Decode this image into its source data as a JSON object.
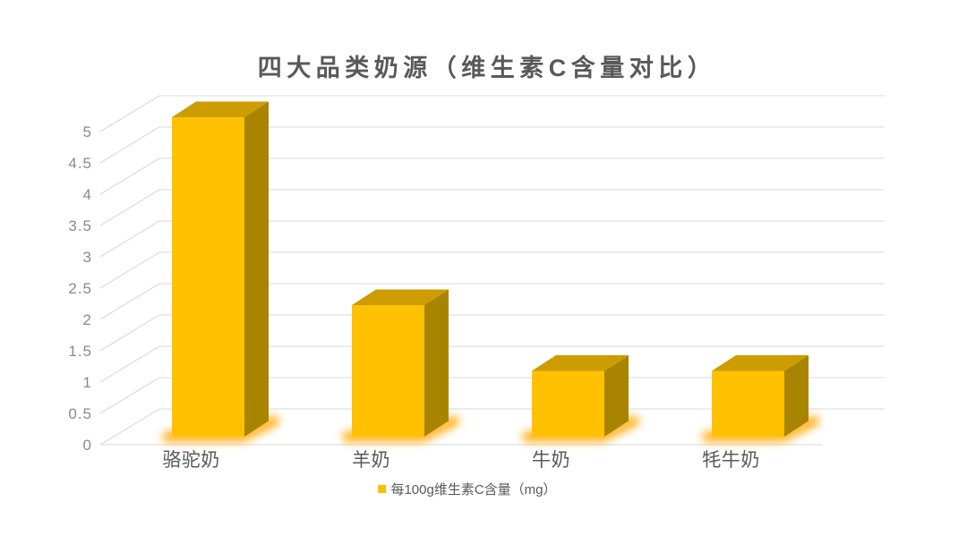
{
  "chart_data": {
    "type": "bar",
    "style": "3d-column",
    "title": "四大品类奶源（维生素C含量对比）",
    "categories": [
      "骆驼奶",
      "羊奶",
      "牛奶",
      "牦牛奶"
    ],
    "series": [
      {
        "name": "每100g维生素C含量（mg）",
        "values": [
          5.1,
          2.1,
          1.05,
          1.05
        ]
      }
    ],
    "xlabel": "",
    "ylabel": "",
    "ylim": [
      0,
      5
    ],
    "ytick_step": 0.5,
    "yticks": [
      "0",
      "0.5",
      "1",
      "1.5",
      "2",
      "2.5",
      "3",
      "3.5",
      "4",
      "4.5",
      "5"
    ],
    "grid": true,
    "legend": {
      "label": "每100g维生素C含量（mg）",
      "position": "bottom"
    },
    "colors": {
      "bar_front": "#FFC000",
      "bar_top": "#CC9C00",
      "bar_side": "#A98400",
      "glow": "#FFA800",
      "gridline": "#D9D9D9",
      "tick_text": "#8A8A8A",
      "category_text": "#595959",
      "title_text": "#595959",
      "background": "#FFFFFF"
    }
  }
}
